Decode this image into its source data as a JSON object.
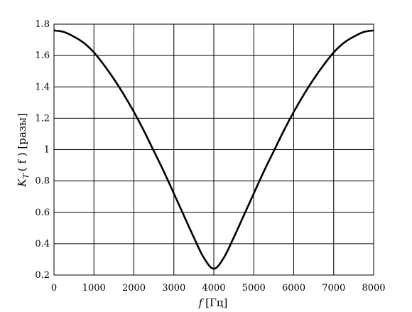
{
  "chart_data": {
    "type": "line",
    "title": "",
    "xlabel_main": "f",
    "xlabel_unit": "[Гц]",
    "ylabel_main": "K",
    "ylabel_sub": "T",
    "ylabel_rest": "( f ) [разы]",
    "xlim": [
      0,
      8000
    ],
    "ylim": [
      0.2,
      1.8
    ],
    "grid": true,
    "x_ticks": [
      0,
      1000,
      2000,
      3000,
      4000,
      5000,
      6000,
      7000,
      8000
    ],
    "x_tick_labels": [
      "0",
      "1000",
      "2000",
      "3000",
      "4000",
      "5000",
      "6000",
      "7000",
      "8000"
    ],
    "y_ticks": [
      0.2,
      0.4,
      0.6,
      0.8,
      1.0,
      1.2,
      1.4,
      1.6,
      1.8
    ],
    "y_tick_labels": [
      "0.2",
      "0.4",
      "0.6",
      "0.8",
      "1",
      "1.2",
      "1.4",
      "1.6",
      "1.8"
    ],
    "series": [
      {
        "color": "#000000",
        "x": [
          0,
          250,
          500,
          750,
          1000,
          1250,
          1500,
          1750,
          2000,
          2250,
          2500,
          2750,
          3000,
          3250,
          3500,
          3750,
          4000,
          4250,
          4500,
          4750,
          5000,
          5250,
          5500,
          5750,
          6000,
          6250,
          6500,
          6750,
          7000,
          7250,
          7500,
          7750,
          8000
        ],
        "y": [
          1.76,
          1.75,
          1.72,
          1.68,
          1.62,
          1.54,
          1.45,
          1.35,
          1.24,
          1.12,
          0.99,
          0.86,
          0.72,
          0.58,
          0.44,
          0.31,
          0.24,
          0.31,
          0.44,
          0.58,
          0.72,
          0.86,
          0.99,
          1.12,
          1.24,
          1.35,
          1.45,
          1.54,
          1.62,
          1.68,
          1.72,
          1.75,
          1.76
        ]
      }
    ]
  }
}
